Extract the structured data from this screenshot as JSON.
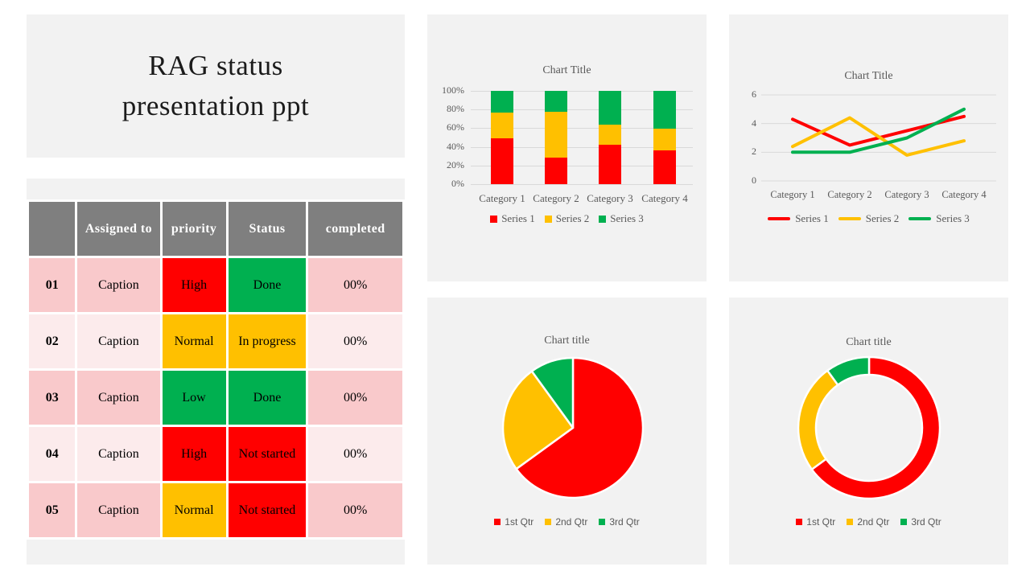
{
  "colors": {
    "red": "#ff0000",
    "yellow": "#ffc000",
    "green": "#00b050",
    "header_gray": "#7f7f7f",
    "row_pink_dark": "#f9c9cb",
    "row_pink_light": "#fcebec",
    "chart_text": "#595959",
    "gridline": "#d9d9d9",
    "card_bg": "#f2f2f2"
  },
  "title": {
    "text": "RAG status presentation ppt"
  },
  "table": {
    "headers": [
      "",
      "Assigned to",
      "priority",
      "Status",
      "completed"
    ],
    "rows": [
      {
        "num": "01",
        "assigned": "Caption",
        "priority": "High",
        "priority_color": "#ff0000",
        "status": "Done",
        "status_color": "#00b050",
        "completed": "00%"
      },
      {
        "num": "02",
        "assigned": "Caption",
        "priority": "Normal",
        "priority_color": "#ffc000",
        "status": "In progress",
        "status_color": "#ffc000",
        "completed": "00%"
      },
      {
        "num": "03",
        "assigned": "Caption",
        "priority": "Low",
        "priority_color": "#00b050",
        "status": "Done",
        "status_color": "#00b050",
        "completed": "00%"
      },
      {
        "num": "04",
        "assigned": "Caption",
        "priority": "High",
        "priority_color": "#ff0000",
        "status": "Not started",
        "status_color": "#ff0000",
        "completed": "00%"
      },
      {
        "num": "05",
        "assigned": "Caption",
        "priority": "Normal",
        "priority_color": "#ffc000",
        "status": "Not started",
        "status_color": "#ff0000",
        "completed": "00%"
      }
    ]
  },
  "chart_data": [
    {
      "type": "bar",
      "subtype": "100-percent-stacked-column",
      "title": "Chart Title",
      "categories": [
        "Category 1",
        "Category 2",
        "Category 3",
        "Category 4"
      ],
      "series": [
        {
          "name": "Series 1",
          "color": "#ff0000",
          "values": [
            4.3,
            2.5,
            3.5,
            4.5
          ]
        },
        {
          "name": "Series 2",
          "color": "#ffc000",
          "values": [
            2.4,
            4.4,
            1.8,
            2.8
          ]
        },
        {
          "name": "Series 3",
          "color": "#00b050",
          "values": [
            2.0,
            2.0,
            3.0,
            5.0
          ]
        }
      ],
      "y_ticks": [
        "100%",
        "80%",
        "60%",
        "40%",
        "20%",
        "0%"
      ],
      "ylim": [
        0,
        1
      ],
      "grid": true,
      "legend_position": "bottom"
    },
    {
      "type": "line",
      "title": "Chart Title",
      "categories": [
        "Category 1",
        "Category 2",
        "Category 3",
        "Category 4"
      ],
      "series": [
        {
          "name": "Series 1",
          "color": "#ff0000",
          "values": [
            4.3,
            2.5,
            3.5,
            4.5
          ]
        },
        {
          "name": "Series 2",
          "color": "#ffc000",
          "values": [
            2.4,
            4.4,
            1.8,
            2.8
          ]
        },
        {
          "name": "Series 3",
          "color": "#00b050",
          "values": [
            2.0,
            2.0,
            3.0,
            5.0
          ]
        }
      ],
      "y_ticks": [
        6,
        4,
        2,
        0
      ],
      "ylim": [
        0,
        6
      ],
      "grid": true,
      "legend_position": "bottom"
    },
    {
      "type": "pie",
      "title": "Chart title",
      "labels": [
        "1st Qtr",
        "2nd Qtr",
        "3rd Qtr"
      ],
      "values": [
        65,
        25,
        10
      ],
      "colors": [
        "#ff0000",
        "#ffc000",
        "#00b050"
      ],
      "legend_position": "bottom"
    },
    {
      "type": "doughnut",
      "title": "Chart title",
      "labels": [
        "1st Qtr",
        "2nd Qtr",
        "3rd Qtr"
      ],
      "values": [
        65,
        25,
        10
      ],
      "colors": [
        "#ff0000",
        "#ffc000",
        "#00b050"
      ],
      "legend_position": "bottom"
    }
  ]
}
